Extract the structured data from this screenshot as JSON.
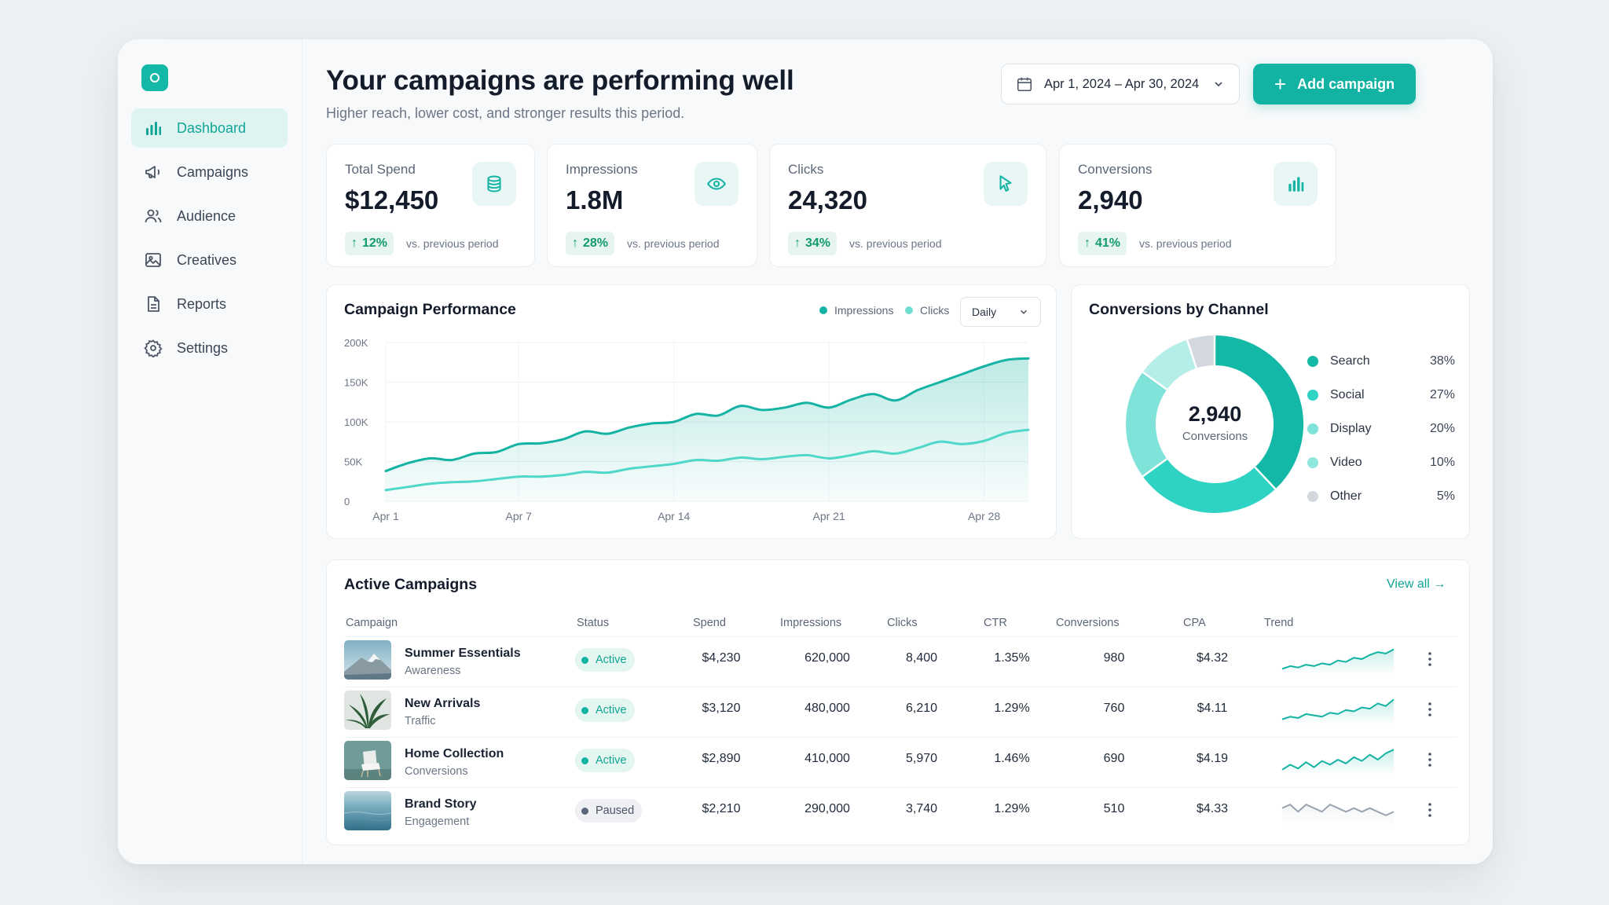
{
  "sidebar": {
    "items": [
      {
        "label": "Dashboard",
        "icon": "bar-chart-icon"
      },
      {
        "label": "Campaigns",
        "icon": "megaphone-icon"
      },
      {
        "label": "Audience",
        "icon": "users-icon"
      },
      {
        "label": "Creatives",
        "icon": "image-icon"
      },
      {
        "label": "Reports",
        "icon": "document-icon"
      },
      {
        "label": "Settings",
        "icon": "gear-icon"
      }
    ],
    "active": "Dashboard"
  },
  "header": {
    "title": "Your campaigns are performing well",
    "subtitle": "Higher reach, lower cost, and stronger results this period.",
    "date_range": "Apr 1, 2024 – Apr 30, 2024",
    "add_button": "Add campaign"
  },
  "kpis": [
    {
      "label": "Total Spend",
      "value": "$12,450",
      "delta": "12%",
      "note": "vs. previous period",
      "icon": "database-icon"
    },
    {
      "label": "Impressions",
      "value": "1.8M",
      "delta": "28%",
      "note": "vs. previous period",
      "icon": "eye-icon"
    },
    {
      "label": "Clicks",
      "value": "24,320",
      "delta": "34%",
      "note": "vs. previous period",
      "icon": "cursor-icon"
    },
    {
      "label": "Conversions",
      "value": "2,940",
      "delta": "41%",
      "note": "vs. previous period",
      "icon": "bar-chart-icon"
    }
  ],
  "performance": {
    "title": "Campaign Performance",
    "legend": [
      "Impressions",
      "Clicks"
    ],
    "interval": "Daily"
  },
  "channels": {
    "title": "Conversions by Channel",
    "center_value": "2,940",
    "center_label": "Conversions",
    "items": [
      {
        "label": "Search",
        "pct": "38%",
        "color": "#14b8a6"
      },
      {
        "label": "Social",
        "pct": "27%",
        "color": "#2fd3c4"
      },
      {
        "label": "Display",
        "pct": "20%",
        "color": "#7fe3da"
      },
      {
        "label": "Video",
        "pct": "10%",
        "color": "#b5eee8"
      },
      {
        "label": "Other",
        "pct": "5%",
        "color": "#d2d8de"
      }
    ]
  },
  "chart_data": [
    {
      "type": "line",
      "title": "Campaign Performance",
      "x": [
        "Apr 1",
        "Apr 2",
        "Apr 3",
        "Apr 4",
        "Apr 5",
        "Apr 6",
        "Apr 7",
        "Apr 8",
        "Apr 9",
        "Apr 10",
        "Apr 11",
        "Apr 12",
        "Apr 13",
        "Apr 14",
        "Apr 15",
        "Apr 16",
        "Apr 17",
        "Apr 18",
        "Apr 19",
        "Apr 20",
        "Apr 21",
        "Apr 22",
        "Apr 23",
        "Apr 24",
        "Apr 25",
        "Apr 26",
        "Apr 27",
        "Apr 28",
        "Apr 29",
        "Apr 30"
      ],
      "xticks": [
        "Apr 1",
        "Apr 7",
        "Apr 14",
        "Apr 21",
        "Apr 28"
      ],
      "yticks": [
        "0",
        "50K",
        "100K",
        "150K",
        "200K"
      ],
      "ylim": [
        0,
        200000
      ],
      "series": [
        {
          "name": "Impressions",
          "color": "#14b3a3",
          "fill": true,
          "values": [
            38000,
            48000,
            54000,
            52000,
            60000,
            62000,
            72000,
            73000,
            78000,
            88000,
            85000,
            93000,
            98000,
            100000,
            110000,
            108000,
            120000,
            115000,
            118000,
            124000,
            118000,
            128000,
            135000,
            127000,
            140000,
            150000,
            160000,
            170000,
            178000,
            180000
          ]
        },
        {
          "name": "Clicks",
          "color": "#4fd7c9",
          "fill": false,
          "values": [
            14000,
            18000,
            22000,
            24000,
            25000,
            28000,
            31000,
            31000,
            33000,
            37000,
            36000,
            41000,
            44000,
            47000,
            52000,
            51000,
            55000,
            53000,
            56000,
            58000,
            54000,
            58000,
            63000,
            60000,
            67000,
            75000,
            72000,
            76000,
            86000,
            90000
          ]
        }
      ],
      "grid": true
    },
    {
      "type": "pie",
      "title": "Conversions by Channel",
      "categories": [
        "Search",
        "Social",
        "Display",
        "Video",
        "Other"
      ],
      "values": [
        38,
        27,
        20,
        10,
        5
      ],
      "donut": true
    }
  ],
  "table": {
    "title": "Active Campaigns",
    "view_all": "View all",
    "columns": [
      "Campaign",
      "Status",
      "Spend",
      "Impressions",
      "Clicks",
      "CTR",
      "Conversions",
      "CPA",
      "Trend"
    ],
    "rows": [
      {
        "name": "Summer Essentials",
        "type": "Awareness",
        "status": "Active",
        "spend": "$4,230",
        "impressions": "620,000",
        "clicks": "8,400",
        "ctr": "1.35%",
        "conversions": "980",
        "cpa": "$4.32",
        "trend": [
          12,
          14,
          13,
          15,
          14,
          16,
          15,
          18,
          17,
          20,
          19,
          22,
          24,
          23,
          26
        ],
        "thumb": "mountain"
      },
      {
        "name": "New Arrivals",
        "type": "Traffic",
        "status": "Active",
        "spend": "$3,120",
        "impressions": "480,000",
        "clicks": "6,210",
        "ctr": "1.29%",
        "conversions": "760",
        "cpa": "$4.11",
        "trend": [
          10,
          12,
          11,
          14,
          13,
          12,
          15,
          14,
          17,
          16,
          19,
          18,
          22,
          20,
          25
        ],
        "thumb": "plant"
      },
      {
        "name": "Home Collection",
        "type": "Conversions",
        "status": "Active",
        "spend": "$2,890",
        "impressions": "410,000",
        "clicks": "5,970",
        "ctr": "1.46%",
        "conversions": "690",
        "cpa": "$4.19",
        "trend": [
          11,
          15,
          12,
          17,
          13,
          18,
          15,
          19,
          16,
          21,
          18,
          23,
          19,
          24,
          27
        ],
        "thumb": "chair"
      },
      {
        "name": "Brand Story",
        "type": "Engagement",
        "status": "Paused",
        "spend": "$2,210",
        "impressions": "290,000",
        "clicks": "3,740",
        "ctr": "1.29%",
        "conversions": "510",
        "cpa": "$4.33",
        "trend": [
          16,
          17,
          15,
          17,
          16,
          15,
          17,
          16,
          15,
          16,
          15,
          16,
          15,
          14,
          15
        ],
        "thumb": "sea"
      }
    ]
  },
  "colors": {
    "accent": "#12b3a3",
    "positive": "#129a6a",
    "paused": "#6b7686"
  }
}
